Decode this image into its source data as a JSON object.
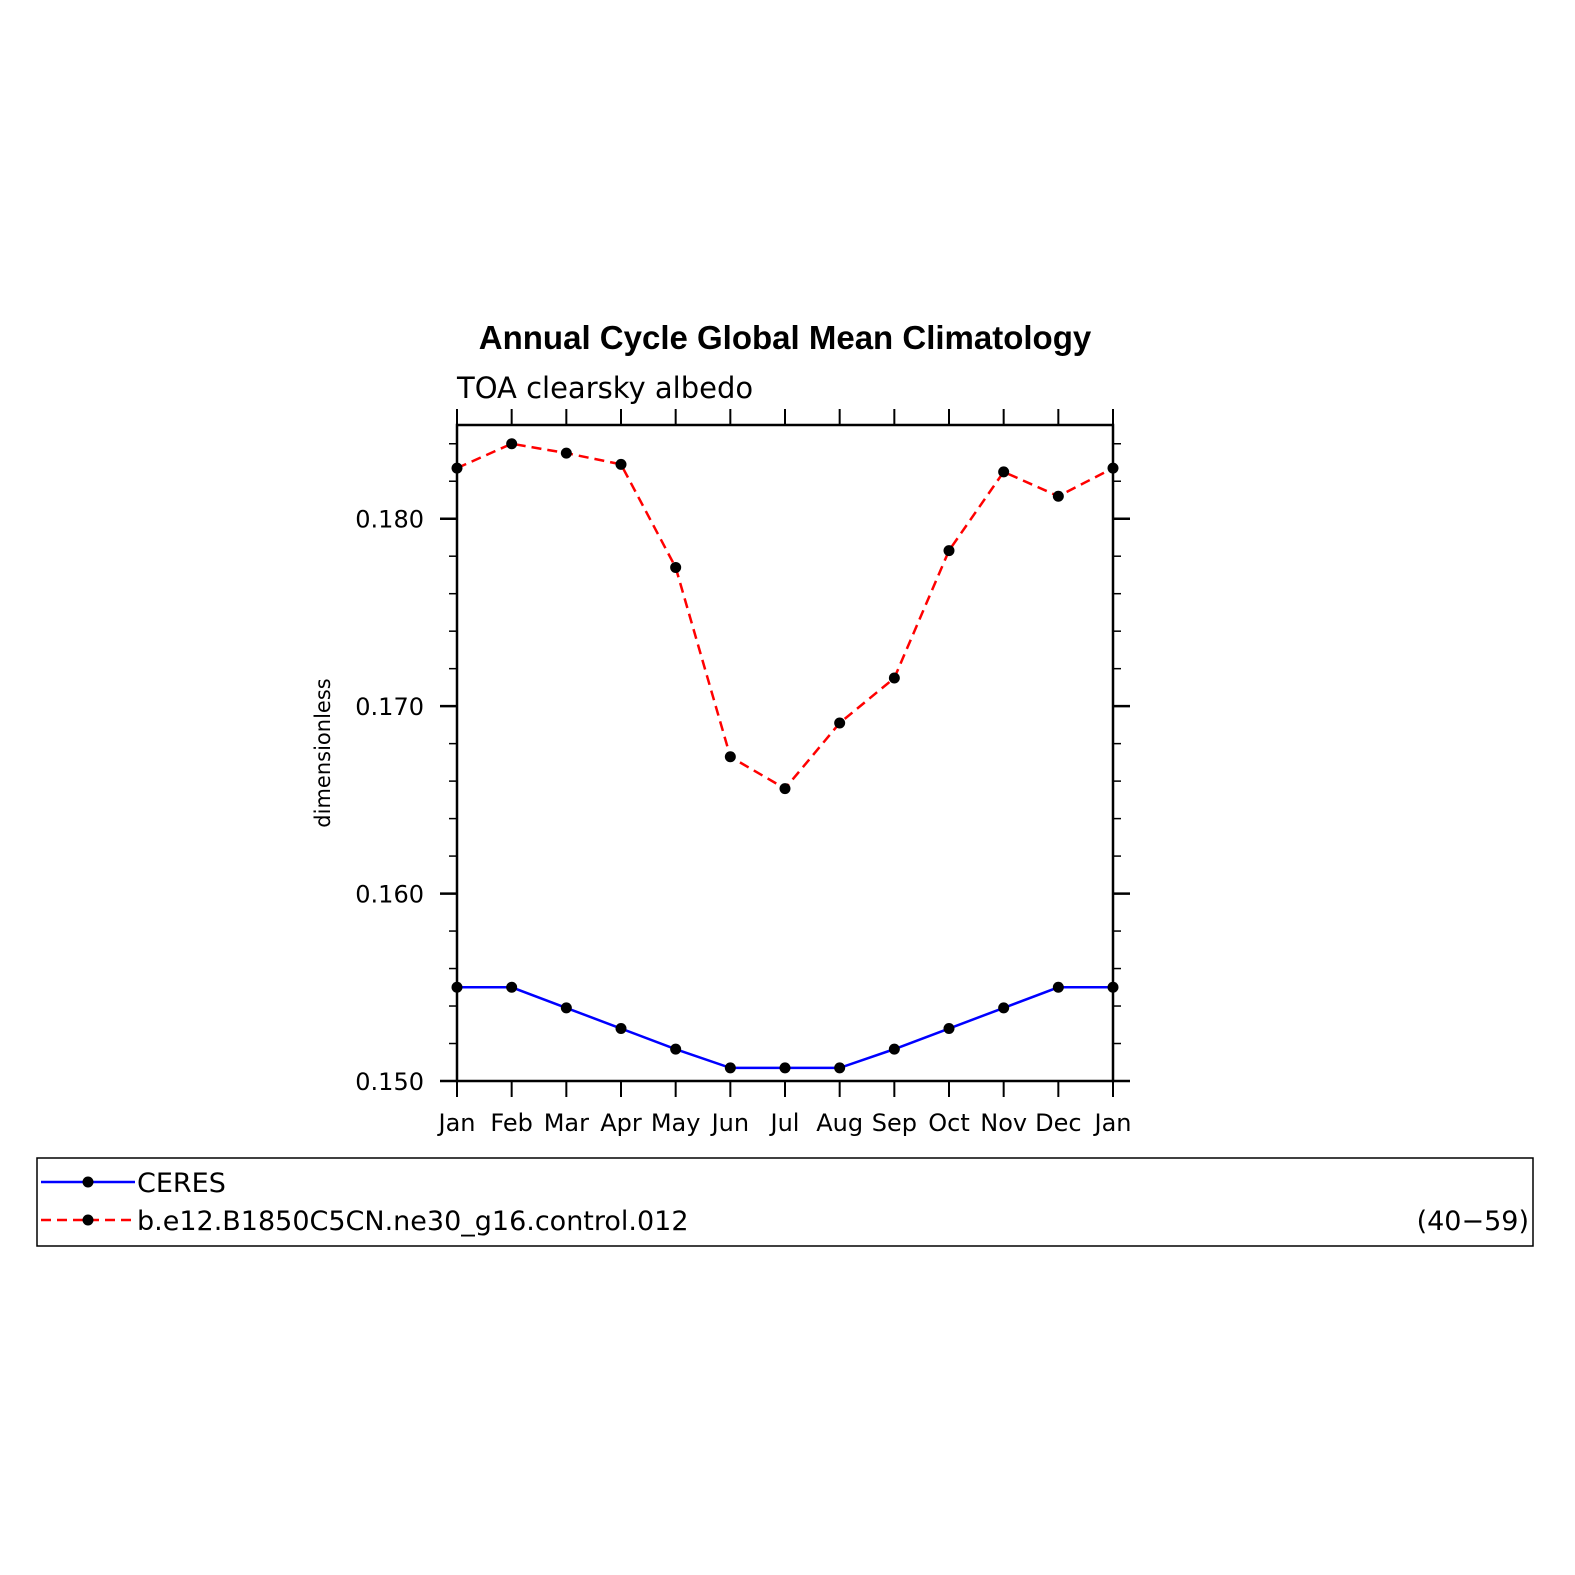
{
  "chart_data": {
    "type": "line",
    "title": "Annual Cycle Global Mean Climatology",
    "subtitle": "TOA clearsky albedo",
    "xlabel": "",
    "ylabel": "dimensionless",
    "categories": [
      "Jan",
      "Feb",
      "Mar",
      "Apr",
      "May",
      "Jun",
      "Jul",
      "Aug",
      "Sep",
      "Oct",
      "Nov",
      "Dec",
      "Jan"
    ],
    "ylim": [
      0.15,
      0.185
    ],
    "yticks": [
      0.15,
      0.16,
      0.17,
      0.18
    ],
    "ytick_labels": [
      "0.150",
      "0.160",
      "0.170",
      "0.180"
    ],
    "series": [
      {
        "name": "CERES",
        "color": "#0000ff",
        "style": "solid",
        "values": [
          0.155,
          0.155,
          0.1539,
          0.1528,
          0.1517,
          0.1507,
          0.1507,
          0.1507,
          0.1517,
          0.1528,
          0.1539,
          0.155,
          0.155
        ]
      },
      {
        "name": "b.e12.B1850C5CN.ne30_g16.control.012",
        "color": "#ff0000",
        "style": "dashed",
        "values": [
          0.1827,
          0.184,
          0.1835,
          0.1829,
          0.1774,
          0.1673,
          0.1656,
          0.1691,
          0.1715,
          0.1783,
          0.1825,
          0.1812,
          0.1827
        ]
      }
    ],
    "legend": {
      "placement": "bottom",
      "entries": [
        "CERES",
        "b.e12.B1850C5CN.ne30_g16.control.012"
      ],
      "note": "(40−59)"
    }
  }
}
